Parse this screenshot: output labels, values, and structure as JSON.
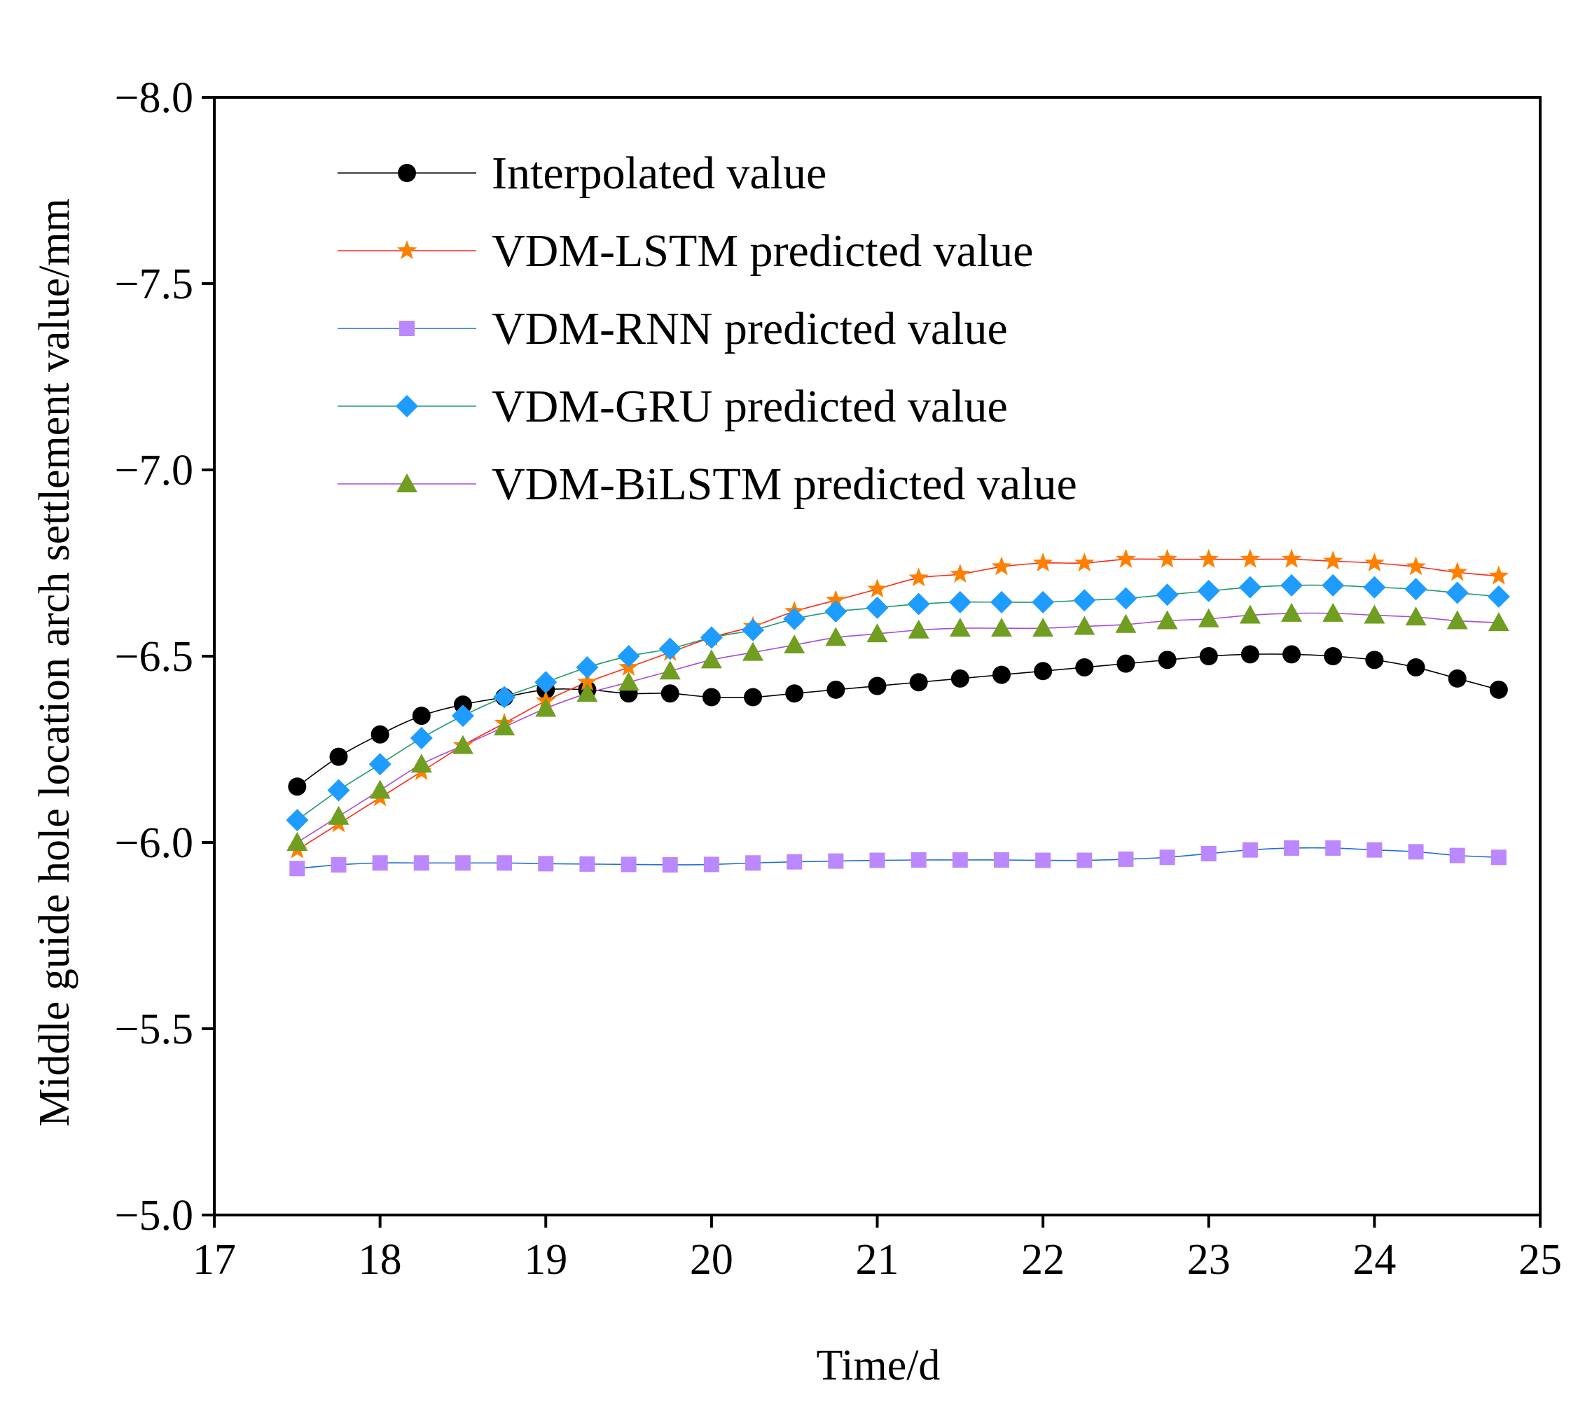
{
  "chart_data": {
    "type": "line",
    "title": "",
    "xlabel": "Time/d",
    "ylabel": "Middle guide hole location arch settlement value/mm",
    "xlim": [
      17,
      25
    ],
    "ylim": [
      -5.0,
      -8.0
    ],
    "x_ticks": [
      17,
      18,
      19,
      20,
      21,
      22,
      23,
      24,
      25
    ],
    "x_tick_labels": [
      "17",
      "18",
      "19",
      "20",
      "21",
      "22",
      "23",
      "24",
      "25"
    ],
    "y_ticks": [
      -5.0,
      -5.5,
      -6.0,
      -6.5,
      -7.0,
      -7.5,
      -8.0
    ],
    "y_tick_labels": [
      "−5.0",
      "−5.5",
      "−6.0",
      "−6.5",
      "−7.0",
      "−7.5",
      "−8.0"
    ],
    "grid": false,
    "legend_position": "top-left",
    "x": [
      17.5,
      17.75,
      18.0,
      18.25,
      18.5,
      18.75,
      19.0,
      19.25,
      19.5,
      19.75,
      20.0,
      20.25,
      20.5,
      20.75,
      21.0,
      21.25,
      21.5,
      21.75,
      22.0,
      22.25,
      22.5,
      22.75,
      23.0,
      23.25,
      23.5,
      23.75,
      24.0,
      24.25,
      24.5,
      24.75
    ],
    "series": [
      {
        "name": "Interpolated value",
        "line_color": "#000000",
        "marker": "circle",
        "marker_color": "#000000",
        "values": [
          -6.15,
          -6.23,
          -6.29,
          -6.34,
          -6.37,
          -6.39,
          -6.41,
          -6.41,
          -6.4,
          -6.4,
          -6.39,
          -6.39,
          -6.4,
          -6.41,
          -6.42,
          -6.43,
          -6.44,
          -6.45,
          -6.46,
          -6.47,
          -6.48,
          -6.49,
          -6.5,
          -6.505,
          -6.505,
          -6.5,
          -6.49,
          -6.47,
          -6.44,
          -6.41
        ]
      },
      {
        "name": "VDM-LSTM predicted value",
        "line_color": "#ff2a1a",
        "marker": "star",
        "marker_color": "#ff7f00",
        "values": [
          -5.98,
          -6.05,
          -6.12,
          -6.19,
          -6.26,
          -6.32,
          -6.38,
          -6.43,
          -6.47,
          -6.51,
          -6.55,
          -6.58,
          -6.62,
          -6.65,
          -6.68,
          -6.71,
          -6.72,
          -6.74,
          -6.75,
          -6.75,
          -6.76,
          -6.76,
          -6.76,
          -6.76,
          -6.76,
          -6.755,
          -6.75,
          -6.74,
          -6.725,
          -6.715
        ]
      },
      {
        "name": "VDM-RNN predicted value",
        "line_color": "#1f6fd6",
        "marker": "square",
        "marker_color": "#bb88ff",
        "values": [
          -5.93,
          -5.94,
          -5.945,
          -5.945,
          -5.945,
          -5.945,
          -5.943,
          -5.942,
          -5.941,
          -5.94,
          -5.941,
          -5.945,
          -5.948,
          -5.95,
          -5.952,
          -5.953,
          -5.953,
          -5.953,
          -5.952,
          -5.952,
          -5.955,
          -5.96,
          -5.97,
          -5.98,
          -5.985,
          -5.985,
          -5.98,
          -5.975,
          -5.965,
          -5.96
        ]
      },
      {
        "name": "VDM-GRU predicted value",
        "line_color": "#1f9a68",
        "marker": "diamond",
        "marker_color": "#1e9cff",
        "values": [
          -6.06,
          -6.14,
          -6.21,
          -6.28,
          -6.34,
          -6.39,
          -6.43,
          -6.47,
          -6.5,
          -6.52,
          -6.55,
          -6.57,
          -6.6,
          -6.62,
          -6.63,
          -6.64,
          -6.645,
          -6.645,
          -6.645,
          -6.65,
          -6.655,
          -6.665,
          -6.675,
          -6.685,
          -6.69,
          -6.69,
          -6.685,
          -6.68,
          -6.67,
          -6.66
        ]
      },
      {
        "name": "VDM-BiLSTM predicted value",
        "line_color": "#a54bdc",
        "marker": "triangle",
        "marker_color": "#6f9e20",
        "values": [
          -6.0,
          -6.07,
          -6.14,
          -6.21,
          -6.26,
          -6.31,
          -6.36,
          -6.4,
          -6.43,
          -6.46,
          -6.49,
          -6.51,
          -6.53,
          -6.55,
          -6.56,
          -6.57,
          -6.575,
          -6.575,
          -6.575,
          -6.58,
          -6.585,
          -6.595,
          -6.6,
          -6.61,
          -6.615,
          -6.615,
          -6.61,
          -6.605,
          -6.595,
          -6.59
        ]
      }
    ]
  }
}
